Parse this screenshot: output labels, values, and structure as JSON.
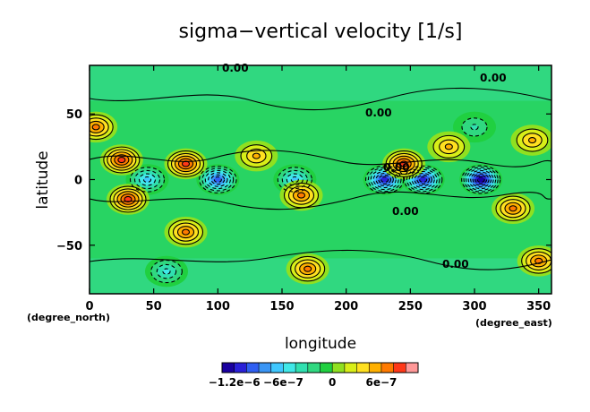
{
  "chart_data": {
    "type": "heatmap",
    "title": "sigma−vertical velocity [1/s]",
    "xlabel": "longitude",
    "ylabel": "latitude",
    "x_unit": "(degree_north)",
    "y_unit_right": "(degree_east)",
    "xlim": [
      0,
      360
    ],
    "ylim": [
      -87,
      87
    ],
    "x_ticks": [
      0,
      50,
      100,
      150,
      200,
      250,
      300,
      350
    ],
    "y_ticks": [
      50,
      0,
      -50
    ],
    "grid": false,
    "contour_label": "0.00",
    "colorbar": {
      "ticks": [
        {
          "value": -1.2e-06,
          "label": "−1.2e−6"
        },
        {
          "value": -6e-07,
          "label": "−6e−7"
        },
        {
          "value": 0,
          "label": "0"
        },
        {
          "value": 6e-07,
          "label": "6e−7"
        }
      ],
      "levels": [
        -1.35e-06,
        -1.2e-06,
        -1.05e-06,
        -9e-07,
        -7.5e-07,
        -6e-07,
        -4.5e-07,
        -3e-07,
        -1.5e-07,
        0,
        1.5e-07,
        3e-07,
        4.5e-07,
        6e-07,
        7.5e-07,
        9e-07
      ],
      "colors": [
        "#1a00a0",
        "#2a20d8",
        "#2f5ff2",
        "#3a95f5",
        "#40c8ff",
        "#40e8e8",
        "#30e0b0",
        "#30d880",
        "#20d040",
        "#90e020",
        "#d8ee18",
        "#ffe020",
        "#ffb000",
        "#ff7a00",
        "#ff3818",
        "#ff9898"
      ]
    },
    "features": {
      "positive_maxima": [
        {
          "lon": 5,
          "lat": 40,
          "value": 6e-07
        },
        {
          "lon": 25,
          "lat": 15,
          "value": 7e-07
        },
        {
          "lon": 30,
          "lat": -15,
          "value": 7.5e-07
        },
        {
          "lon": 75,
          "lat": 12,
          "value": 7e-07
        },
        {
          "lon": 75,
          "lat": -40,
          "value": 6e-07
        },
        {
          "lon": 130,
          "lat": 18,
          "value": 4.5e-07
        },
        {
          "lon": 165,
          "lat": -12,
          "value": 6e-07
        },
        {
          "lon": 170,
          "lat": -68,
          "value": 6e-07
        },
        {
          "lon": 245,
          "lat": 12,
          "value": 7.5e-07
        },
        {
          "lon": 280,
          "lat": 25,
          "value": 4.5e-07
        },
        {
          "lon": 330,
          "lat": -22,
          "value": 6e-07
        },
        {
          "lon": 350,
          "lat": -62,
          "value": 6e-07
        },
        {
          "lon": 345,
          "lat": 30,
          "value": 4.5e-07
        }
      ],
      "negative_minima": [
        {
          "lon": 45,
          "lat": 0,
          "value": -6e-07
        },
        {
          "lon": 100,
          "lat": 0,
          "value": -9e-07
        },
        {
          "lon": 160,
          "lat": 0,
          "value": -6e-07
        },
        {
          "lon": 230,
          "lat": 0,
          "value": -1.05e-06
        },
        {
          "lon": 260,
          "lat": 0,
          "value": -1.05e-06
        },
        {
          "lon": 305,
          "lat": 0,
          "value": -1.2e-06
        },
        {
          "lon": 300,
          "lat": 40,
          "value": -3e-07
        },
        {
          "lon": 60,
          "lat": -70,
          "value": -4.5e-07
        }
      ]
    }
  }
}
